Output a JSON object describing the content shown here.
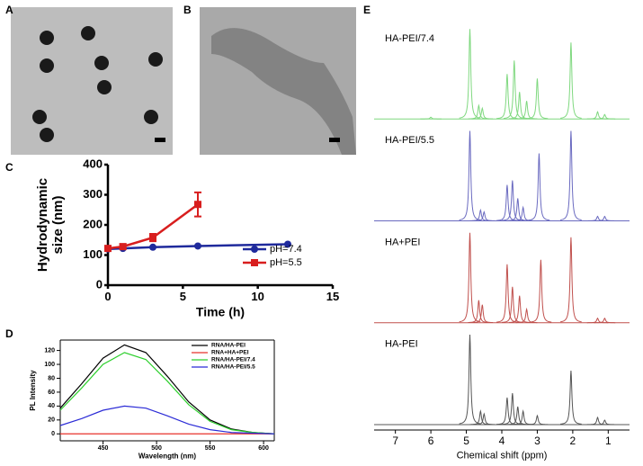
{
  "images": [
    {
      "label": "A"
    },
    {
      "label": "B"
    }
  ],
  "chart_data": [
    {
      "type": "line",
      "panel_label": "C",
      "xlabel": "Time (h)",
      "ylabel_lines": [
        "Hydrodynamic",
        "size (nm)"
      ],
      "xlim": [
        0,
        15
      ],
      "xticks": [
        0,
        5,
        10,
        15
      ],
      "ylim": [
        0,
        400
      ],
      "yticks": [
        0,
        100,
        200,
        300,
        400
      ],
      "legend": "lower right",
      "frame": false,
      "series": [
        {
          "name": "pH=7.4",
          "color": "#1f2a9c",
          "marker": "circle",
          "x": [
            0,
            1,
            3,
            6,
            12
          ],
          "values": [
            120,
            122,
            126,
            130,
            136
          ]
        },
        {
          "name": "pH=5.5",
          "color": "#d81e1e",
          "marker": "square",
          "x": [
            0,
            1,
            3,
            6
          ],
          "values": [
            122,
            128,
            158,
            268
          ],
          "errors": [
            5,
            8,
            12,
            40
          ]
        }
      ]
    },
    {
      "type": "line",
      "panel_label": "D",
      "xlabel": "Wavelength (nm)",
      "ylabel": "PL Intensity",
      "xlim": [
        410,
        610
      ],
      "xticks": [
        450,
        500,
        550,
        600
      ],
      "ylim": [
        -10,
        135
      ],
      "yticks": [
        0,
        20,
        40,
        60,
        80,
        100,
        120
      ],
      "legend": "upper right",
      "frame": true,
      "x": [
        410,
        430,
        450,
        470,
        490,
        510,
        530,
        550,
        570,
        590,
        610
      ],
      "series": [
        {
          "name": "RNA/HA-PEI",
          "color": "#000000",
          "values": [
            37,
            72,
            109,
            128,
            117,
            83,
            46,
            20,
            7,
            2,
            0
          ]
        },
        {
          "name": "RNA+HA+PEI",
          "color": "#e8332c",
          "values": [
            0,
            0,
            0,
            0,
            0,
            0,
            0,
            0,
            0,
            0,
            0
          ]
        },
        {
          "name": "RNA/HA-PEI/7.4",
          "color": "#2ccf2c",
          "values": [
            34,
            66,
            100,
            117,
            107,
            76,
            42,
            18,
            6,
            2,
            0
          ]
        },
        {
          "name": "RNA/HA-PEI/5.5",
          "color": "#2b2bd6",
          "values": [
            12,
            22,
            34,
            40,
            37,
            26,
            14,
            6,
            2,
            1,
            0
          ]
        }
      ]
    },
    {
      "type": "spectrum",
      "panel_label": "E",
      "xlabel": "Chemical shift (ppm)",
      "xlim": [
        7.6,
        0.4
      ],
      "xticks": [
        7,
        6,
        5,
        4,
        3,
        2,
        1
      ],
      "series": [
        {
          "name": "HA-PEI/7.4",
          "color": "#7fd87f",
          "x": [
            6.0,
            4.9,
            4.65,
            4.55,
            3.85,
            3.65,
            3.5,
            3.3,
            3.0,
            2.05,
            1.3,
            1.1
          ],
          "values": [
            2,
            100,
            15,
            12,
            50,
            65,
            30,
            20,
            45,
            85,
            8,
            5
          ]
        },
        {
          "name": "HA-PEI/5.5",
          "color": "#6a6ac0",
          "x": [
            4.9,
            4.6,
            4.5,
            3.85,
            3.7,
            3.55,
            3.4,
            2.95,
            2.05,
            1.3,
            1.1
          ],
          "values": [
            100,
            12,
            10,
            40,
            45,
            25,
            15,
            75,
            100,
            5,
            5
          ]
        },
        {
          "name": "HA+PEI",
          "color": "#c0504d",
          "x": [
            4.9,
            4.65,
            4.55,
            3.85,
            3.7,
            3.5,
            3.3,
            2.9,
            2.05,
            1.3,
            1.1
          ],
          "values": [
            100,
            25,
            20,
            65,
            40,
            30,
            15,
            70,
            95,
            5,
            5
          ]
        },
        {
          "name": "HA-PEI",
          "color": "#555555",
          "x": [
            4.9,
            4.6,
            4.5,
            3.85,
            3.7,
            3.55,
            3.4,
            3.0,
            2.05,
            1.3,
            1.1
          ],
          "values": [
            100,
            15,
            12,
            30,
            35,
            20,
            15,
            10,
            60,
            8,
            5
          ]
        }
      ]
    }
  ]
}
